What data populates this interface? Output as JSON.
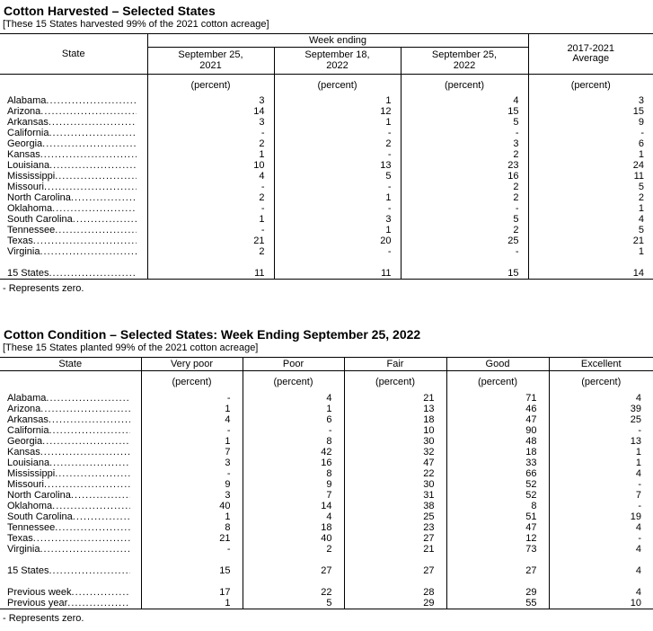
{
  "harvested": {
    "title": "Cotton Harvested – Selected States",
    "caption": "[These 15 States harvested 99% of the 2021 cotton acreage]",
    "state_header": "State",
    "group_header": "Week ending",
    "columns": [
      {
        "l1": "September 25,",
        "l2": "2021"
      },
      {
        "l1": "September 18,",
        "l2": "2022"
      },
      {
        "l1": "September 25,",
        "l2": "2022"
      }
    ],
    "avg_header": {
      "l1": "2017-2021",
      "l2": "Average"
    },
    "unit": "(percent)",
    "footnote": "- Represents zero.",
    "rows": [
      {
        "label": "Alabama",
        "values": [
          "3",
          "1",
          "4",
          "3"
        ]
      },
      {
        "label": "Arizona",
        "values": [
          "14",
          "12",
          "15",
          "15"
        ]
      },
      {
        "label": "Arkansas",
        "values": [
          "3",
          "1",
          "5",
          "9"
        ]
      },
      {
        "label": "California",
        "values": [
          "-",
          "-",
          "-",
          "-"
        ]
      },
      {
        "label": "Georgia",
        "values": [
          "2",
          "2",
          "3",
          "6"
        ]
      },
      {
        "label": "Kansas",
        "values": [
          "1",
          "-",
          "2",
          "1"
        ]
      },
      {
        "label": "Louisiana",
        "values": [
          "10",
          "13",
          "23",
          "24"
        ]
      },
      {
        "label": "Mississippi",
        "values": [
          "4",
          "5",
          "16",
          "11"
        ]
      },
      {
        "label": "Missouri",
        "values": [
          "-",
          "-",
          "2",
          "5"
        ]
      },
      {
        "label": "North Carolina",
        "values": [
          "2",
          "1",
          "2",
          "2"
        ]
      },
      {
        "label": "Oklahoma",
        "values": [
          "-",
          "-",
          "-",
          "1"
        ]
      },
      {
        "label": "South Carolina",
        "values": [
          "1",
          "3",
          "5",
          "4"
        ]
      },
      {
        "label": "Tennessee",
        "values": [
          "-",
          "1",
          "2",
          "5"
        ]
      },
      {
        "label": "Texas",
        "values": [
          "21",
          "20",
          "25",
          "21"
        ]
      },
      {
        "label": "Virginia",
        "values": [
          "2",
          "-",
          "-",
          "1"
        ]
      },
      {
        "spacer": true
      },
      {
        "label": "15 States",
        "values": [
          "11",
          "11",
          "15",
          "14"
        ]
      }
    ]
  },
  "condition": {
    "title": "Cotton Condition – Selected States: Week Ending September 25, 2022",
    "caption": "[These 15 States planted 99% of the 2021 cotton acreage]",
    "state_header": "State",
    "col_headers": [
      "Very poor",
      "Poor",
      "Fair",
      "Good",
      "Excellent"
    ],
    "unit": "(percent)",
    "footnote": "- Represents zero.",
    "rows": [
      {
        "label": "Alabama",
        "values": [
          "-",
          "4",
          "21",
          "71",
          "4"
        ]
      },
      {
        "label": "Arizona",
        "values": [
          "1",
          "1",
          "13",
          "46",
          "39"
        ]
      },
      {
        "label": "Arkansas",
        "values": [
          "4",
          "6",
          "18",
          "47",
          "25"
        ]
      },
      {
        "label": "California",
        "values": [
          "-",
          "-",
          "10",
          "90",
          "-"
        ]
      },
      {
        "label": "Georgia",
        "values": [
          "1",
          "8",
          "30",
          "48",
          "13"
        ]
      },
      {
        "label": "Kansas",
        "values": [
          "7",
          "42",
          "32",
          "18",
          "1"
        ]
      },
      {
        "label": "Louisiana",
        "values": [
          "3",
          "16",
          "47",
          "33",
          "1"
        ]
      },
      {
        "label": "Mississippi",
        "values": [
          "-",
          "8",
          "22",
          "66",
          "4"
        ]
      },
      {
        "label": "Missouri",
        "values": [
          "9",
          "9",
          "30",
          "52",
          "-"
        ]
      },
      {
        "label": "North Carolina",
        "values": [
          "3",
          "7",
          "31",
          "52",
          "7"
        ]
      },
      {
        "label": "Oklahoma",
        "values": [
          "40",
          "14",
          "38",
          "8",
          "-"
        ]
      },
      {
        "label": "South Carolina",
        "values": [
          "1",
          "4",
          "25",
          "51",
          "19"
        ]
      },
      {
        "label": "Tennessee",
        "values": [
          "8",
          "18",
          "23",
          "47",
          "4"
        ]
      },
      {
        "label": "Texas",
        "values": [
          "21",
          "40",
          "27",
          "12",
          "-"
        ]
      },
      {
        "label": "Virginia",
        "values": [
          "-",
          "2",
          "21",
          "73",
          "4"
        ]
      },
      {
        "spacer": true
      },
      {
        "label": "15 States",
        "values": [
          "15",
          "27",
          "27",
          "27",
          "4"
        ]
      },
      {
        "spacer": true
      },
      {
        "label": "Previous week",
        "values": [
          "17",
          "22",
          "28",
          "29",
          "4"
        ]
      },
      {
        "label": "Previous year",
        "values": [
          "1",
          "5",
          "29",
          "55",
          "10"
        ]
      }
    ]
  }
}
